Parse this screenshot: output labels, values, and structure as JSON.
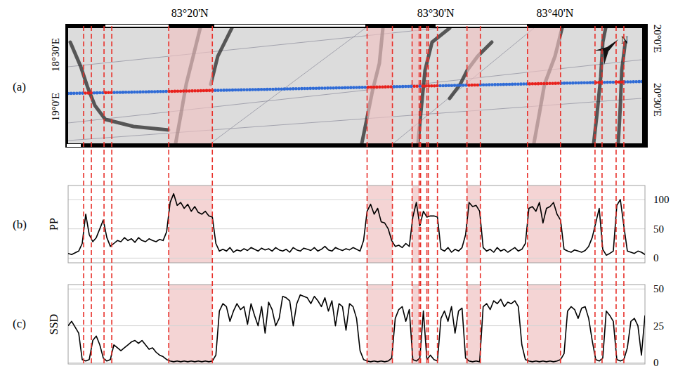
{
  "chart_data": [
    {
      "type": "map",
      "panel_label": "(a)",
      "lat_labels": [
        {
          "value": 34.6,
          "label": "83°20'N"
        },
        {
          "value": 104.5,
          "label": "83°30'N"
        },
        {
          "value": 138.4,
          "label": "83°40'N"
        }
      ],
      "lon_labels_left": [
        "18°30'E",
        "19°0'E"
      ],
      "lon_labels_right": [
        "20°0'E",
        "20°30'E"
      ],
      "north": "N",
      "xlim": [
        0,
        164
      ],
      "leads": [
        {
          "start": 4.4,
          "end": 6.6
        },
        {
          "start": 10.2,
          "end": 12.4
        },
        {
          "start": 28.6,
          "end": 41
        },
        {
          "start": 85,
          "end": 92.2
        },
        {
          "start": 97.8,
          "end": 99.8
        },
        {
          "start": 100.2,
          "end": 102
        },
        {
          "start": 102.4,
          "end": 105
        },
        {
          "start": 113.4,
          "end": 117.2
        },
        {
          "start": 130.6,
          "end": 140
        },
        {
          "start": 149.8,
          "end": 151.8
        },
        {
          "start": 155.8,
          "end": 158
        }
      ],
      "colors": [
        "none",
        "none",
        "#f0c2c2",
        "#f0c2c2",
        "#f0c2c2",
        "none",
        "none",
        "#f0c2c2",
        "#f0c2c2",
        "none",
        "none"
      ]
    },
    {
      "type": "line",
      "panel_label": "(b)",
      "y_label": "PP",
      "color": "#000000",
      "grid": true,
      "tick_labels": "y",
      "xlim": [
        0,
        164
      ],
      "ylim": [
        -8,
        124
      ],
      "yticks": [
        0,
        50,
        100
      ],
      "x": [
        0,
        1,
        2,
        3,
        4,
        5,
        6,
        7,
        8,
        9,
        10,
        11,
        12,
        13,
        14,
        15,
        16,
        17,
        18,
        19,
        20,
        21,
        22,
        23,
        24,
        25,
        26,
        27,
        28,
        29,
        30,
        31,
        32,
        33,
        34,
        35,
        36,
        37,
        38,
        39,
        40,
        41,
        42,
        43,
        44,
        45,
        46,
        47,
        48,
        49,
        50,
        51,
        52,
        53,
        54,
        55,
        56,
        57,
        58,
        59,
        60,
        61,
        62,
        63,
        64,
        65,
        66,
        67,
        68,
        69,
        70,
        71,
        72,
        73,
        74,
        75,
        76,
        77,
        78,
        79,
        80,
        81,
        82,
        83,
        84,
        85,
        86,
        87,
        88,
        89,
        90,
        91,
        92,
        93,
        94,
        95,
        96,
        97,
        98,
        99,
        100,
        101,
        102,
        103,
        104,
        105,
        106,
        107,
        108,
        109,
        110,
        111,
        112,
        113,
        114,
        115,
        116,
        117,
        118,
        119,
        120,
        121,
        122,
        123,
        124,
        125,
        126,
        127,
        128,
        129,
        130,
        131,
        132,
        133,
        134,
        135,
        136,
        137,
        138,
        139,
        140,
        141,
        142,
        143,
        144,
        145,
        146,
        147,
        148,
        149,
        150,
        151,
        152,
        153,
        154,
        155,
        156,
        157,
        158,
        159,
        160,
        161,
        162,
        163,
        164
      ],
      "values": [
        8,
        6,
        9,
        12,
        25,
        75,
        40,
        28,
        35,
        50,
        65,
        35,
        20,
        25,
        30,
        28,
        35,
        30,
        33,
        27,
        35,
        30,
        28,
        33,
        30,
        28,
        32,
        30,
        45,
        95,
        110,
        90,
        95,
        85,
        92,
        80,
        88,
        78,
        75,
        80,
        72,
        70,
        25,
        12,
        15,
        12,
        18,
        10,
        14,
        12,
        16,
        13,
        18,
        15,
        12,
        17,
        14,
        16,
        12,
        18,
        14,
        12,
        15,
        10,
        18,
        14,
        12,
        17,
        15,
        13,
        18,
        12,
        15,
        20,
        14,
        12,
        18,
        15,
        13,
        16,
        14,
        18,
        15,
        12,
        30,
        80,
        92,
        75,
        85,
        62,
        60,
        50,
        30,
        20,
        22,
        18,
        25,
        20,
        70,
        95,
        55,
        80,
        70,
        72,
        72,
        70,
        15,
        12,
        18,
        10,
        15,
        12,
        18,
        40,
        95,
        88,
        90,
        80,
        18,
        12,
        15,
        10,
        18,
        12,
        15,
        10,
        14,
        18,
        12,
        15,
        25,
        85,
        88,
        80,
        95,
        60,
        85,
        88,
        95,
        75,
        65,
        15,
        12,
        10,
        14,
        12,
        10,
        13,
        20,
        35,
        60,
        85,
        15,
        5,
        8,
        12,
        90,
        100,
        55,
        12,
        10,
        8,
        12,
        10,
        6
      ]
    },
    {
      "type": "line",
      "panel_label": "(c)",
      "y_label": "SSD",
      "color": "#000000",
      "grid": true,
      "tick_labels": "y",
      "xlim": [
        0,
        164
      ],
      "ylim": [
        -1,
        53
      ],
      "yticks": [
        0,
        25,
        50
      ],
      "x": [
        0,
        1,
        2,
        3,
        4,
        5,
        6,
        7,
        8,
        9,
        10,
        11,
        12,
        13,
        14,
        15,
        16,
        17,
        18,
        19,
        20,
        21,
        22,
        23,
        24,
        25,
        26,
        27,
        28,
        29,
        30,
        31,
        32,
        33,
        34,
        35,
        36,
        37,
        38,
        39,
        40,
        41,
        42,
        43,
        44,
        45,
        46,
        47,
        48,
        49,
        50,
        51,
        52,
        53,
        54,
        55,
        56,
        57,
        58,
        59,
        60,
        61,
        62,
        63,
        64,
        65,
        66,
        67,
        68,
        69,
        70,
        71,
        72,
        73,
        74,
        75,
        76,
        77,
        78,
        79,
        80,
        81,
        82,
        83,
        84,
        85,
        86,
        87,
        88,
        89,
        90,
        91,
        92,
        93,
        94,
        95,
        96,
        97,
        98,
        99,
        100,
        101,
        102,
        103,
        104,
        105,
        106,
        107,
        108,
        109,
        110,
        111,
        112,
        113,
        114,
        115,
        116,
        117,
        118,
        119,
        120,
        121,
        122,
        123,
        124,
        125,
        126,
        127,
        128,
        129,
        130,
        131,
        132,
        133,
        134,
        135,
        136,
        137,
        138,
        139,
        140,
        141,
        142,
        143,
        144,
        145,
        146,
        147,
        148,
        149,
        150,
        151,
        152,
        153,
        154,
        155,
        156,
        157,
        158,
        159,
        160,
        161,
        162,
        163,
        164
      ],
      "values": [
        25,
        28,
        24,
        20,
        2,
        1,
        2,
        15,
        18,
        12,
        3,
        1,
        2,
        12,
        10,
        8,
        10,
        12,
        14,
        15,
        13,
        15,
        12,
        9,
        10,
        7,
        5,
        4,
        2,
        1,
        0.5,
        1,
        0.5,
        1,
        0.5,
        1,
        0.5,
        1,
        0.5,
        1,
        0.5,
        1,
        5,
        35,
        40,
        38,
        28,
        35,
        40,
        36,
        38,
        26,
        40,
        32,
        25,
        38,
        20,
        41,
        36,
        25,
        30,
        45,
        44,
        42,
        25,
        40,
        46,
        45,
        44,
        40,
        45,
        42,
        38,
        44,
        35,
        42,
        25,
        40,
        38,
        22,
        40,
        38,
        30,
        8,
        2,
        1,
        0.5,
        1,
        0.5,
        1,
        0.5,
        1,
        3,
        30,
        36,
        38,
        28,
        36,
        2,
        1,
        3,
        35,
        2,
        5,
        2,
        1,
        30,
        35,
        28,
        38,
        20,
        35,
        37,
        3,
        1,
        0.5,
        1,
        0.5,
        38,
        40,
        36,
        42,
        40,
        43,
        38,
        41,
        40,
        42,
        38,
        12,
        2,
        1,
        0.5,
        1,
        0.5,
        1,
        0.5,
        1,
        0.5,
        1,
        2,
        6,
        35,
        38,
        36,
        30,
        37,
        38,
        30,
        15,
        2,
        1,
        3,
        35,
        32,
        28,
        2,
        1,
        2,
        10,
        28,
        30,
        25,
        5,
        32
      ]
    }
  ]
}
